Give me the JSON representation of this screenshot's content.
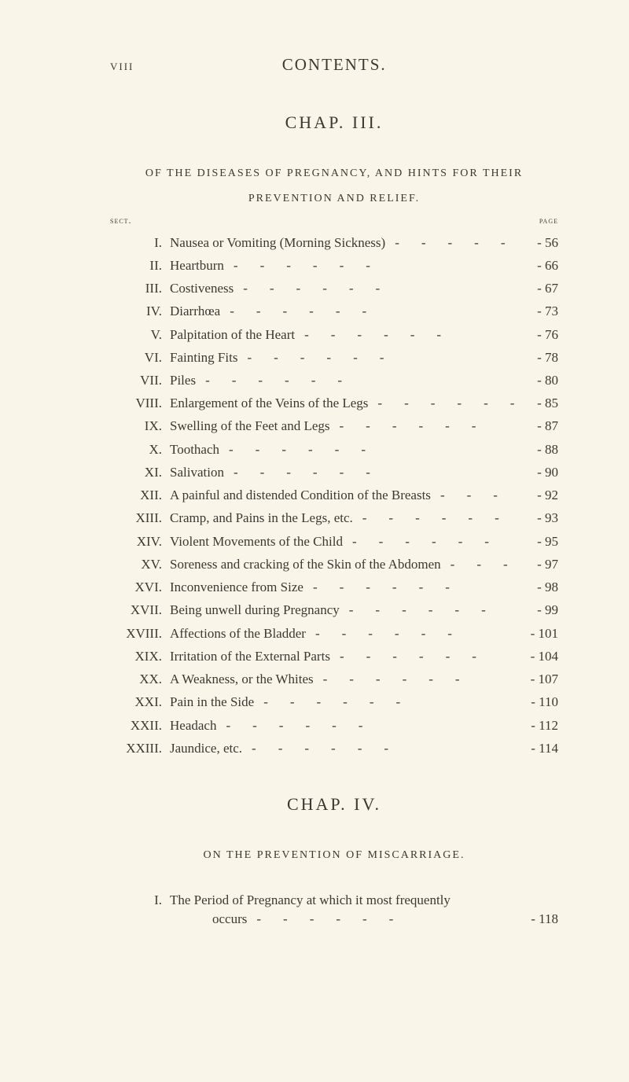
{
  "colors": {
    "background": "#f9f5e8",
    "text": "#3a3a32"
  },
  "header": {
    "page_number_roman": "viii",
    "running_title": "CONTENTS."
  },
  "chapter3": {
    "title": "CHAP. III.",
    "subtitle_line1": "OF THE DISEASES OF PREGNANCY, AND HINTS FOR THEIR",
    "subtitle_line2": "PREVENTION AND RELIEF.",
    "label_sect": "sect.",
    "label_page": "page",
    "entries": [
      {
        "rn": "I.",
        "desc": "Nausea or Vomiting (Morning Sickness)",
        "page": "56"
      },
      {
        "rn": "II.",
        "desc": "Heartburn",
        "page": "66"
      },
      {
        "rn": "III.",
        "desc": "Costiveness",
        "page": "67"
      },
      {
        "rn": "IV.",
        "desc": "Diarrhœa",
        "page": "73"
      },
      {
        "rn": "V.",
        "desc": "Palpitation of the Heart",
        "page": "76"
      },
      {
        "rn": "VI.",
        "desc": "Fainting Fits",
        "page": "78"
      },
      {
        "rn": "VII.",
        "desc": "Piles",
        "page": "80"
      },
      {
        "rn": "VIII.",
        "desc": "Enlargement of the Veins of the Legs",
        "page": "85"
      },
      {
        "rn": "IX.",
        "desc": "Swelling of the Feet and Legs",
        "page": "87"
      },
      {
        "rn": "X.",
        "desc": "Toothach",
        "page": "88"
      },
      {
        "rn": "XI.",
        "desc": "Salivation",
        "page": "90"
      },
      {
        "rn": "XII.",
        "desc": "A painful and distended Condition of the Breasts",
        "page": "92"
      },
      {
        "rn": "XIII.",
        "desc": "Cramp, and Pains in the Legs, etc.",
        "page": "93"
      },
      {
        "rn": "XIV.",
        "desc": "Violent Movements of the Child",
        "page": "95"
      },
      {
        "rn": "XV.",
        "desc": "Soreness and cracking of the Skin of the Abdomen",
        "page": "97"
      },
      {
        "rn": "XVI.",
        "desc": "Inconvenience from Size",
        "page": "98"
      },
      {
        "rn": "XVII.",
        "desc": "Being unwell during Pregnancy",
        "page": "99"
      },
      {
        "rn": "XVIII.",
        "desc": "Affections of the Bladder",
        "page": "101"
      },
      {
        "rn": "XIX.",
        "desc": "Irritation of the External Parts",
        "page": "104"
      },
      {
        "rn": "XX.",
        "desc": "A Weakness, or the Whites",
        "page": "107"
      },
      {
        "rn": "XXI.",
        "desc": "Pain in the Side",
        "page": "110"
      },
      {
        "rn": "XXII.",
        "desc": "Headach",
        "page": "112"
      },
      {
        "rn": "XXIII.",
        "desc": "Jaundice, etc.",
        "page": "114"
      }
    ]
  },
  "chapter4": {
    "title": "CHAP. IV.",
    "subtitle": "ON THE PREVENTION OF MISCARRIAGE.",
    "entries": [
      {
        "rn": "I.",
        "desc": "The Period of Pregnancy at which it most frequently",
        "page": ""
      }
    ],
    "continuation": {
      "desc": "occurs",
      "page": "118"
    }
  }
}
